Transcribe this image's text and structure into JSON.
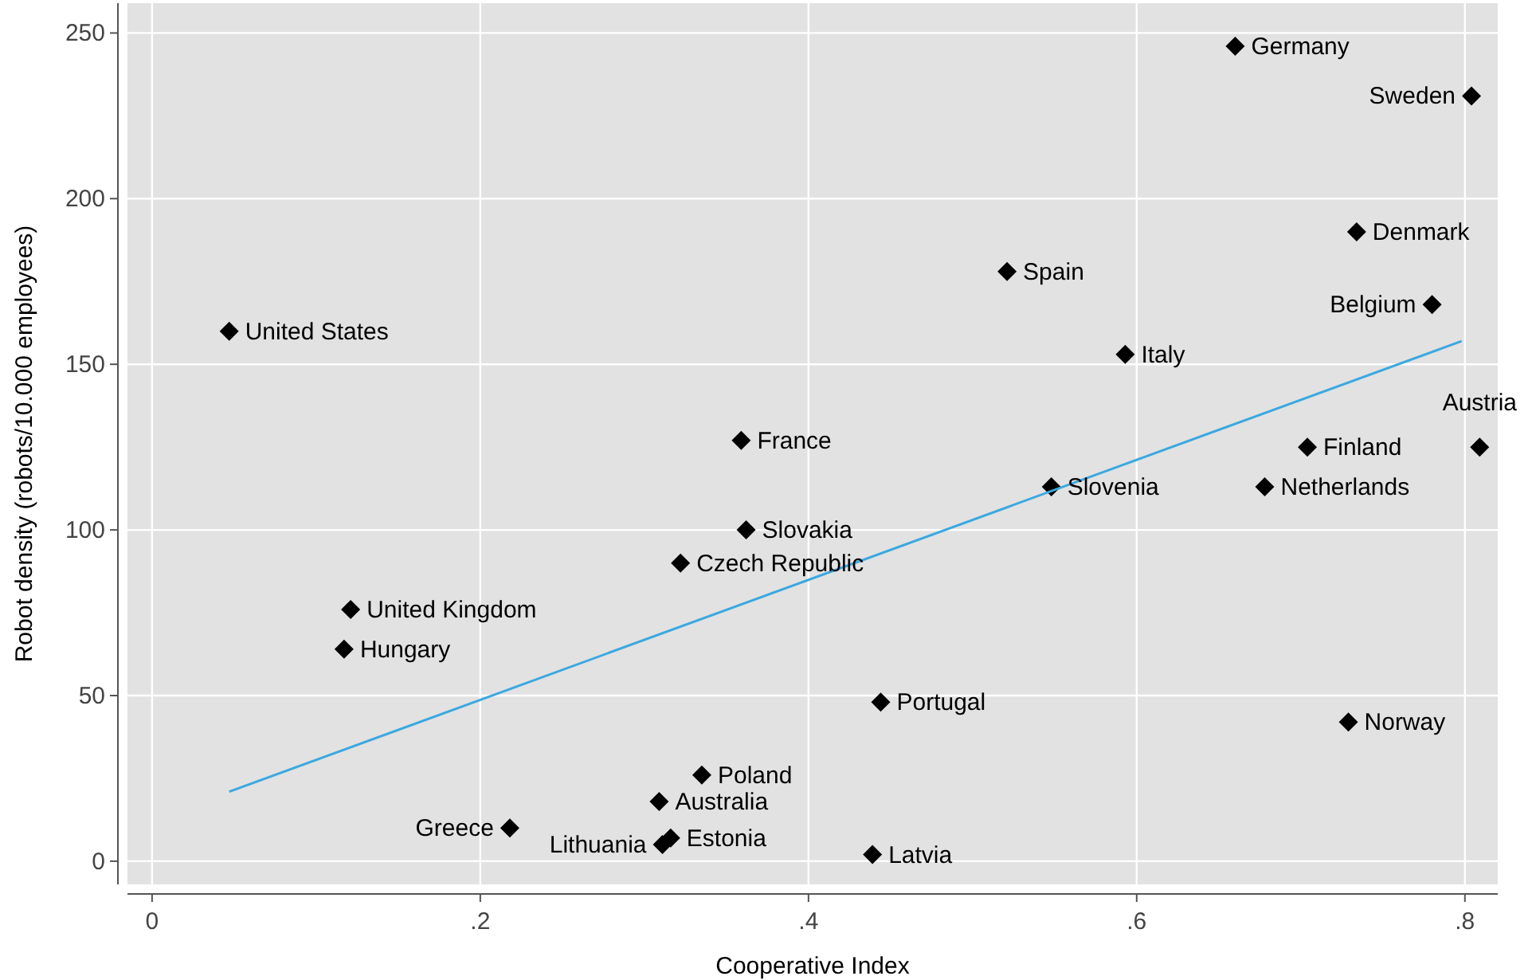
{
  "chart_data": {
    "type": "scatter",
    "xlabel": "Cooperative Index",
    "ylabel": "Robot density (robots/10.000 employees)",
    "xlim": [
      -0.015,
      0.82
    ],
    "ylim": [
      -7,
      259
    ],
    "xticks": [
      {
        "value": 0,
        "label": "0"
      },
      {
        "value": 0.2,
        "label": ".2"
      },
      {
        "value": 0.4,
        "label": ".4"
      },
      {
        "value": 0.6,
        "label": ".6"
      },
      {
        "value": 0.8,
        "label": ".8"
      }
    ],
    "yticks": [
      0,
      50,
      100,
      150,
      200,
      250
    ],
    "grid": true,
    "marker": "diamond",
    "series": [
      {
        "color": "#000000",
        "x": [
          0.047,
          0.66,
          0.804,
          0.734,
          0.78,
          0.521,
          0.593,
          0.704,
          0.809,
          0.678,
          0.548,
          0.359,
          0.362,
          0.322,
          0.121,
          0.117,
          0.444,
          0.729,
          0.335,
          0.309,
          0.316,
          0.311,
          0.218,
          0.439
        ],
        "values": [
          160,
          246,
          231,
          190,
          168,
          178,
          153,
          125,
          125,
          113,
          113,
          127,
          100,
          90,
          76,
          64,
          48,
          42,
          26,
          18,
          7,
          5,
          10,
          2
        ]
      },
      {
        "type": "line",
        "color": "#3aa8e0",
        "marker": "none",
        "x": [
          0.047,
          0.798
        ],
        "values": [
          21,
          157
        ]
      }
    ],
    "annotations": [
      {
        "text": "United States",
        "x": 0.047,
        "y": 160
      },
      {
        "text": "Germany",
        "x": 0.66,
        "y": 246
      },
      {
        "text": "Sweden",
        "x": 0.804,
        "y": 231
      },
      {
        "text": "Denmark",
        "x": 0.734,
        "y": 190
      },
      {
        "text": "Belgium",
        "x": 0.78,
        "y": 168
      },
      {
        "text": "Spain",
        "x": 0.521,
        "y": 178
      },
      {
        "text": "Italy",
        "x": 0.593,
        "y": 153
      },
      {
        "text": "Finland",
        "x": 0.704,
        "y": 125
      },
      {
        "text": "Austria",
        "x": 0.809,
        "y": 125
      },
      {
        "text": "Netherlands",
        "x": 0.678,
        "y": 113
      },
      {
        "text": "Slovenia",
        "x": 0.548,
        "y": 113
      },
      {
        "text": "France",
        "x": 0.359,
        "y": 127
      },
      {
        "text": "Slovakia",
        "x": 0.362,
        "y": 100
      },
      {
        "text": "Czech Republic",
        "x": 0.322,
        "y": 90
      },
      {
        "text": "United Kingdom",
        "x": 0.121,
        "y": 76
      },
      {
        "text": "Hungary",
        "x": 0.117,
        "y": 64
      },
      {
        "text": "Portugal",
        "x": 0.444,
        "y": 48
      },
      {
        "text": "Norway",
        "x": 0.729,
        "y": 42
      },
      {
        "text": "Poland",
        "x": 0.335,
        "y": 26
      },
      {
        "text": "Australia",
        "x": 0.309,
        "y": 18
      },
      {
        "text": "Estonia",
        "x": 0.316,
        "y": 7
      },
      {
        "text": "Lithuania",
        "x": 0.311,
        "y": 5
      },
      {
        "text": "Greece",
        "x": 0.218,
        "y": 10
      },
      {
        "text": "Latvia",
        "x": 0.439,
        "y": 2
      }
    ]
  }
}
